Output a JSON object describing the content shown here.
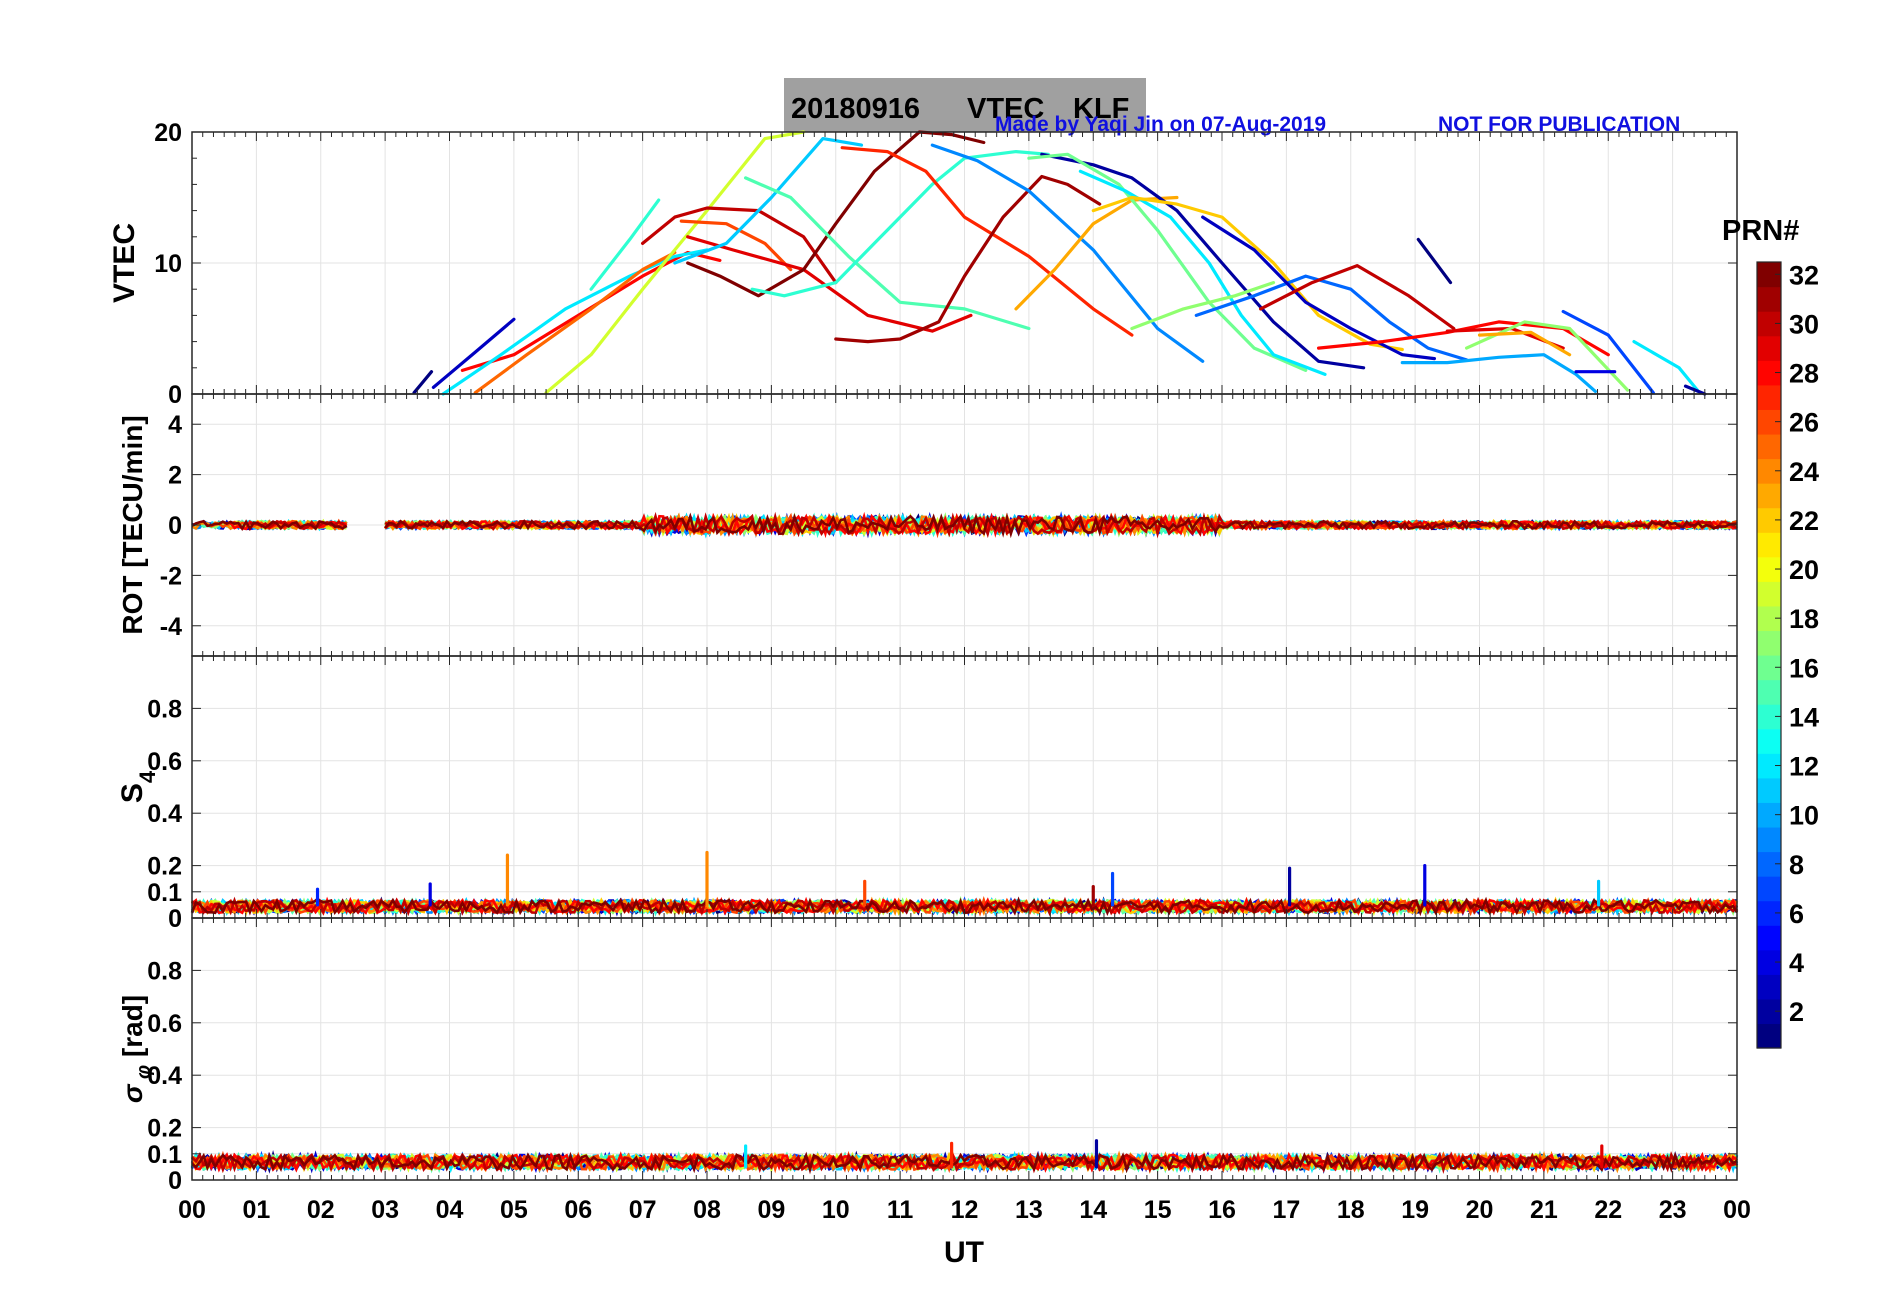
{
  "title": {
    "date": "20180916",
    "product": "VTEC",
    "station": "KLF",
    "credit": "Made by Yaqi Jin on 07-Aug-2019",
    "notice": "NOT FOR PUBLICATION"
  },
  "colors": {
    "title_box": "#a0a0a0",
    "credit_text": "#1010e0",
    "grid": "#e6e6e6",
    "axis": "#262626"
  },
  "colorbar": {
    "label": "PRN#",
    "range": [
      1,
      32
    ],
    "tick_labels": [
      "2",
      "4",
      "6",
      "8",
      "10",
      "12",
      "14",
      "16",
      "18",
      "20",
      "22",
      "24",
      "26",
      "28",
      "30",
      "32"
    ]
  },
  "chart_data": [
    {
      "type": "line",
      "id": "vtec",
      "ylabel": "VTEC",
      "ylim": [
        0,
        20
      ],
      "ytick_labels": [
        "0",
        "10",
        "20"
      ],
      "x_units": "UT hours",
      "series": [
        {
          "prn": 1,
          "x": [
            3.45,
            3.72
          ],
          "y": [
            0.1,
            1.7
          ]
        },
        {
          "prn": 3,
          "x": [
            3.75,
            4.4,
            5.0
          ],
          "y": [
            0.5,
            3.2,
            5.7
          ]
        },
        {
          "prn": 28,
          "x": [
            4.2,
            5.0,
            6.0,
            7.0,
            7.7,
            8.2
          ],
          "y": [
            1.8,
            3.0,
            6.0,
            9.0,
            10.8,
            10.2
          ]
        },
        {
          "prn": 12,
          "x": [
            3.9,
            4.8,
            5.8,
            6.8,
            7.5,
            8.0
          ],
          "y": [
            0.0,
            3.0,
            6.5,
            9.0,
            10.5,
            11.0
          ]
        },
        {
          "prn": 25,
          "x": [
            4.4,
            5.2,
            6.2,
            7.0,
            7.5
          ],
          "y": [
            0.1,
            3.0,
            6.5,
            9.5,
            10.8
          ]
        },
        {
          "prn": 14,
          "x": [
            6.2,
            6.8,
            7.25
          ],
          "y": [
            8.0,
            11.8,
            14.8
          ]
        },
        {
          "prn": 19,
          "x": [
            5.5,
            6.2,
            7.0,
            8.0,
            8.9,
            9.5
          ],
          "y": [
            0.1,
            3.0,
            8.0,
            14.0,
            19.5,
            20.0
          ]
        },
        {
          "prn": 30,
          "x": [
            7.0,
            7.5,
            8.0,
            8.8,
            9.5,
            10.0
          ],
          "y": [
            11.5,
            13.5,
            14.2,
            14.0,
            12.0,
            8.5
          ]
        },
        {
          "prn": 26,
          "x": [
            7.6,
            8.3,
            8.9,
            9.3
          ],
          "y": [
            13.2,
            13.0,
            11.5,
            9.5
          ]
        },
        {
          "prn": 29,
          "x": [
            7.7,
            8.4,
            9.5,
            10.5,
            11.5,
            12.1
          ],
          "y": [
            12.0,
            11.0,
            9.5,
            6.0,
            4.8,
            6.0
          ]
        },
        {
          "prn": 11,
          "x": [
            7.5,
            8.3,
            9.0,
            9.8,
            10.4
          ],
          "y": [
            10.0,
            11.5,
            15.0,
            19.5,
            19.0
          ]
        },
        {
          "prn": 32,
          "x": [
            7.7,
            8.2,
            8.8,
            9.5,
            10.0,
            10.6,
            11.3,
            11.8,
            12.3
          ],
          "y": [
            10.0,
            9.0,
            7.5,
            9.5,
            13.0,
            17.0,
            20.0,
            19.8,
            19.2
          ]
        },
        {
          "prn": 15,
          "x": [
            8.6,
            9.3,
            10.2,
            11.0,
            12.0,
            13.0
          ],
          "y": [
            16.5,
            15.0,
            10.5,
            7.0,
            6.5,
            5.0
          ]
        },
        {
          "prn": 14,
          "x": [
            8.7,
            9.2,
            10.0,
            10.7,
            11.5,
            12.0,
            12.8,
            13.3
          ],
          "y": [
            8.0,
            7.5,
            8.5,
            12.0,
            16.0,
            18.0,
            18.5,
            18.3
          ]
        },
        {
          "prn": 27,
          "x": [
            10.1,
            10.8,
            11.4,
            12.0,
            13.0,
            14.0,
            14.6
          ],
          "y": [
            18.8,
            18.5,
            17.0,
            13.5,
            10.5,
            6.5,
            4.5
          ]
        },
        {
          "prn": 31,
          "x": [
            10.0,
            10.5,
            11.0,
            11.6,
            12.0,
            12.6,
            13.2,
            13.6,
            14.1
          ],
          "y": [
            4.2,
            4.0,
            4.2,
            5.5,
            9.0,
            13.5,
            16.6,
            16.0,
            14.5
          ]
        },
        {
          "prn": 9,
          "x": [
            11.5,
            12.2,
            13.0,
            14.0,
            15.0,
            15.7
          ],
          "y": [
            19.0,
            17.8,
            15.5,
            11.0,
            5.0,
            2.5
          ]
        },
        {
          "prn": 23,
          "x": [
            12.8,
            13.4,
            14.0,
            14.6,
            15.3
          ],
          "y": [
            6.5,
            9.5,
            13.0,
            14.8,
            15.0
          ]
        },
        {
          "prn": 2,
          "x": [
            13.2,
            14.0,
            14.6,
            15.3,
            16.0,
            16.8,
            17.5,
            18.2
          ],
          "y": [
            18.3,
            17.5,
            16.5,
            14.0,
            10.0,
            5.5,
            2.5,
            2.0
          ]
        },
        {
          "prn": 16,
          "x": [
            13.0,
            13.6,
            14.4,
            15.0,
            15.8,
            16.5,
            17.3
          ],
          "y": [
            18.0,
            18.3,
            16.0,
            12.5,
            7.0,
            3.5,
            1.8
          ]
        },
        {
          "prn": 12,
          "x": [
            13.8,
            14.5,
            15.2,
            15.8,
            16.3,
            16.8,
            17.6
          ],
          "y": [
            17.0,
            15.5,
            13.5,
            10.0,
            6.0,
            3.0,
            1.5
          ]
        },
        {
          "prn": 22,
          "x": [
            14.0,
            14.6,
            15.3,
            16.0,
            16.8,
            17.5,
            18.3,
            18.8
          ],
          "y": [
            14.0,
            15.0,
            14.5,
            13.5,
            10.0,
            6.0,
            3.8,
            3.4
          ]
        },
        {
          "prn": 17,
          "x": [
            14.6,
            15.4,
            16.2,
            16.8
          ],
          "y": [
            5.0,
            6.5,
            7.5,
            8.5
          ]
        },
        {
          "prn": 8,
          "x": [
            15.6,
            16.5,
            17.3,
            18.0,
            18.6,
            19.2,
            19.8
          ],
          "y": [
            6.0,
            7.5,
            9.0,
            8.0,
            5.5,
            3.5,
            2.6
          ]
        },
        {
          "prn": 3,
          "x": [
            15.7,
            16.5,
            17.3,
            18.0,
            18.8,
            19.3
          ],
          "y": [
            13.5,
            11.0,
            7.0,
            5.0,
            3.0,
            2.7
          ]
        },
        {
          "prn": 30,
          "x": [
            16.6,
            17.4,
            18.1,
            18.9,
            19.6
          ],
          "y": [
            6.5,
            8.5,
            9.8,
            7.5,
            5.0
          ]
        },
        {
          "prn": 28,
          "x": [
            17.5,
            18.5,
            19.5,
            20.3,
            21.3,
            22.0
          ],
          "y": [
            3.5,
            4.0,
            4.7,
            5.5,
            5.0,
            3.0
          ]
        },
        {
          "prn": 10,
          "x": [
            18.8,
            19.5,
            20.3,
            21.0,
            21.5,
            21.8
          ],
          "y": [
            2.4,
            2.4,
            2.8,
            3.0,
            1.5,
            0.2
          ]
        },
        {
          "prn": 1,
          "x": [
            19.05,
            19.55
          ],
          "y": [
            11.8,
            8.5
          ]
        },
        {
          "prn": 29,
          "x": [
            19.5,
            20.5,
            21.3
          ],
          "y": [
            4.8,
            5.0,
            3.5
          ]
        },
        {
          "prn": 17,
          "x": [
            19.8,
            20.7,
            21.4,
            22.3
          ],
          "y": [
            3.5,
            5.5,
            5.0,
            0.3
          ]
        },
        {
          "prn": 23,
          "x": [
            20.0,
            20.8,
            21.4
          ],
          "y": [
            4.5,
            4.7,
            3.0
          ]
        },
        {
          "prn": 7,
          "x": [
            21.3,
            22.0,
            22.7
          ],
          "y": [
            6.3,
            4.5,
            0.1
          ]
        },
        {
          "prn": 12,
          "x": [
            22.4,
            23.1,
            23.4
          ],
          "y": [
            4.0,
            2.0,
            0.2
          ]
        },
        {
          "prn": 4,
          "x": [
            21.5,
            22.1
          ],
          "y": [
            1.7,
            1.7
          ]
        },
        {
          "prn": 2,
          "x": [
            23.2,
            23.5
          ],
          "y": [
            0.6,
            0.0
          ]
        }
      ]
    },
    {
      "type": "line",
      "id": "rot",
      "ylabel": "ROT [TECU/min]",
      "ylim": [
        -5.2,
        5.2
      ],
      "ytick_labels": [
        "-4",
        "-2",
        "0",
        "2",
        "4"
      ],
      "description": "Rate of TEC for all PRNs, fluctuating within about ±0.4 TECU/min around 0 from 00 to 24 UT (data gap ~02.5–03.0 UT)",
      "baseline": 0
    },
    {
      "type": "line",
      "id": "s4",
      "ylabel": "S4",
      "ylim": [
        0,
        1.0
      ],
      "ytick_labels": [
        "0",
        "0.1",
        "0.2",
        "0.4",
        "0.6",
        "0.8"
      ],
      "baseline_range": [
        0.02,
        0.08
      ],
      "spikes": [
        {
          "x": 4.9,
          "y": 0.24,
          "prn": 24
        },
        {
          "x": 8.0,
          "y": 0.25,
          "prn": 24
        },
        {
          "x": 10.45,
          "y": 0.14,
          "prn": 26
        },
        {
          "x": 14.3,
          "y": 0.17,
          "prn": 7
        },
        {
          "x": 17.05,
          "y": 0.19,
          "prn": 2
        },
        {
          "x": 19.15,
          "y": 0.2,
          "prn": 4
        },
        {
          "x": 1.95,
          "y": 0.11,
          "prn": 6
        },
        {
          "x": 3.7,
          "y": 0.13,
          "prn": 4
        },
        {
          "x": 21.85,
          "y": 0.14,
          "prn": 11
        },
        {
          "x": 14.0,
          "y": 0.12,
          "prn": 31
        }
      ]
    },
    {
      "type": "line",
      "id": "sigma_phi",
      "ylabel": "σφ [rad]",
      "ylim": [
        0,
        1.0
      ],
      "ytick_labels": [
        "0",
        "0.1",
        "0.2",
        "0.4",
        "0.6",
        "0.8"
      ],
      "baseline_range": [
        0.04,
        0.11
      ],
      "spikes": [
        {
          "x": 14.05,
          "y": 0.15,
          "prn": 2
        },
        {
          "x": 11.8,
          "y": 0.14,
          "prn": 27
        },
        {
          "x": 21.9,
          "y": 0.13,
          "prn": 29
        },
        {
          "x": 8.6,
          "y": 0.13,
          "prn": 12
        }
      ]
    }
  ],
  "x_axis": {
    "label": "UT",
    "range": [
      0,
      24
    ],
    "tick_labels": [
      "00",
      "01",
      "02",
      "03",
      "04",
      "05",
      "06",
      "07",
      "08",
      "09",
      "10",
      "11",
      "12",
      "13",
      "14",
      "15",
      "16",
      "17",
      "18",
      "19",
      "20",
      "21",
      "22",
      "23",
      "00"
    ]
  }
}
